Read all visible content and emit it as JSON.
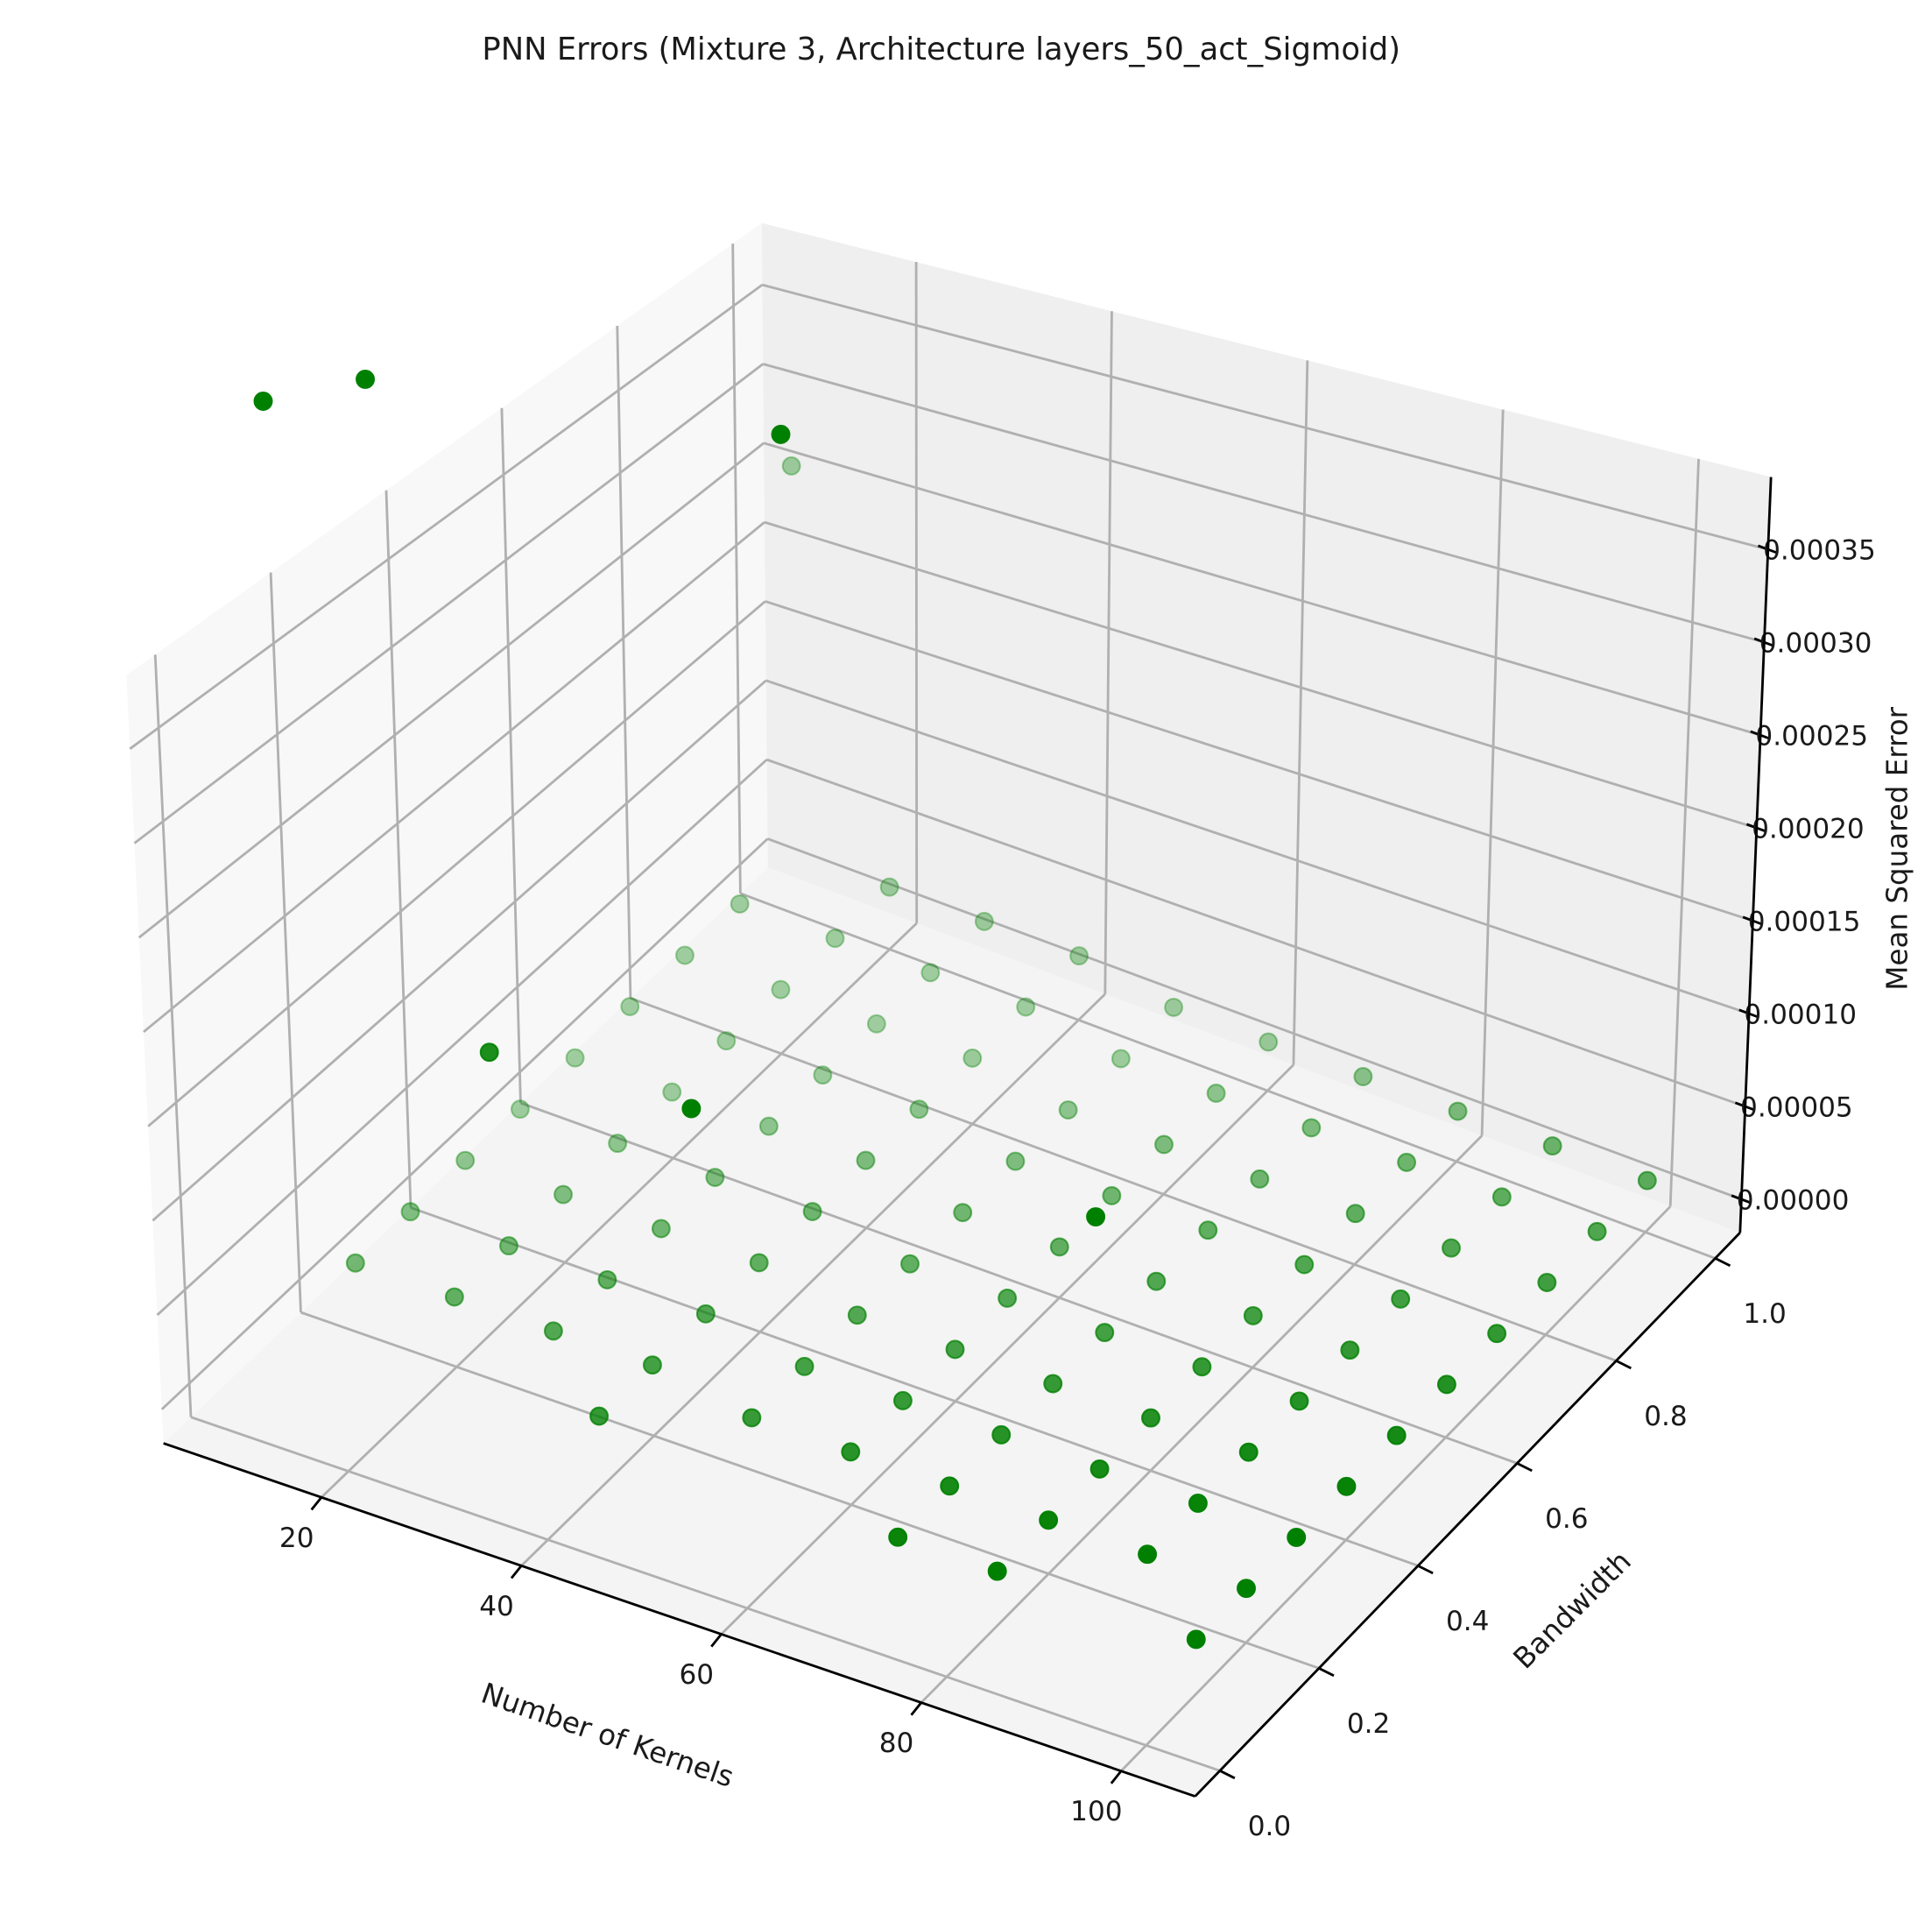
{
  "chart_data": {
    "type": "scatter3d",
    "title": "PNN Errors (Mixture 3, Architecture layers_50_act_Sigmoid)",
    "xlabel": "Number of Kernels",
    "ylabel": "Bandwidth",
    "zlabel": "Mean Squared Error",
    "color": "#008000",
    "x": [
      10,
      10,
      10,
      10,
      10,
      10,
      10,
      10,
      10,
      10,
      20,
      20,
      20,
      20,
      20,
      20,
      20,
      20,
      20,
      20,
      30,
      30,
      30,
      30,
      30,
      30,
      30,
      30,
      30,
      30,
      40,
      40,
      40,
      40,
      40,
      40,
      40,
      40,
      40,
      40,
      50,
      50,
      50,
      50,
      50,
      50,
      50,
      50,
      50,
      50,
      60,
      60,
      60,
      60,
      60,
      60,
      60,
      60,
      60,
      60,
      70,
      70,
      70,
      70,
      70,
      70,
      70,
      70,
      70,
      70,
      80,
      80,
      80,
      80,
      80,
      80,
      80,
      80,
      80,
      80,
      90,
      90,
      90,
      90,
      90,
      90,
      90,
      90,
      90,
      90,
      100,
      100,
      100,
      100,
      100,
      100,
      100,
      100,
      100,
      100
    ],
    "y": [
      0.1,
      0.2,
      0.3,
      0.4,
      0.5,
      0.6,
      0.7,
      0.8,
      0.9,
      1.0,
      0.1,
      0.2,
      0.3,
      0.4,
      0.5,
      0.6,
      0.7,
      0.8,
      0.9,
      1.0,
      0.1,
      0.2,
      0.3,
      0.4,
      0.5,
      0.6,
      0.7,
      0.8,
      0.9,
      1.0,
      0.1,
      0.2,
      0.3,
      0.4,
      0.5,
      0.6,
      0.7,
      0.8,
      0.9,
      1.0,
      0.1,
      0.2,
      0.3,
      0.4,
      0.5,
      0.6,
      0.7,
      0.8,
      0.9,
      1.0,
      0.1,
      0.2,
      0.3,
      0.4,
      0.5,
      0.6,
      0.7,
      0.8,
      0.9,
      1.0,
      0.1,
      0.2,
      0.3,
      0.4,
      0.5,
      0.6,
      0.7,
      0.8,
      0.9,
      1.0,
      0.1,
      0.2,
      0.3,
      0.4,
      0.5,
      0.6,
      0.7,
      0.8,
      0.9,
      1.0,
      0.1,
      0.2,
      0.3,
      0.4,
      0.5,
      0.6,
      0.7,
      0.8,
      0.9,
      1.0,
      0.1,
      0.2,
      0.3,
      0.4,
      0.5,
      0.6,
      0.7,
      0.8,
      0.9,
      1.0
    ],
    "z": [
      0.000513,
      2e-05,
      2e-05,
      2e-05,
      2e-05,
      2e-05,
      2e-05,
      2e-05,
      2e-05,
      0.00026,
      0.00054,
      2e-05,
      2e-05,
      2e-05,
      2e-05,
      2e-05,
      2e-05,
      2e-05,
      2e-05,
      2e-05,
      0.000196,
      2e-05,
      2e-05,
      2e-05,
      2e-05,
      2e-05,
      2e-05,
      2e-05,
      2e-05,
      2e-05,
      2e-05,
      2e-05,
      2e-05,
      2e-05,
      2e-05,
      2e-05,
      2e-05,
      2e-05,
      2e-05,
      2e-05,
      0.0002,
      1e-05,
      1e-05,
      1e-05,
      1e-05,
      1e-05,
      1e-05,
      1e-05,
      1e-05,
      1e-05,
      0.00057,
      1e-05,
      1e-05,
      1e-05,
      1e-05,
      1e-05,
      1e-05,
      1e-05,
      1e-05,
      1e-05,
      1e-05,
      1e-05,
      1e-05,
      1e-05,
      1e-05,
      1e-05,
      1e-05,
      1e-05,
      1e-05,
      1e-05,
      1e-05,
      1e-05,
      1e-05,
      1e-05,
      1e-05,
      1e-05,
      1e-05,
      1e-05,
      1e-05,
      1e-05,
      0.00021,
      1e-05,
      1e-05,
      1e-05,
      1e-05,
      1e-05,
      1e-05,
      1e-05,
      1e-05,
      1e-05,
      1e-05,
      1e-05,
      1e-05,
      1e-05,
      1e-05,
      1e-05,
      1e-05,
      1e-05,
      1e-05,
      1e-05
    ],
    "xlim": [
      4.2,
      107.4
    ],
    "ylim": [
      -0.05,
      1.05
    ],
    "zlim": [
      -1.8e-05,
      0.000389
    ],
    "xticks": [
      20,
      40,
      60,
      80,
      100
    ],
    "yticks": [
      {
        "value": 0,
        "label": "0.0"
      },
      0.2,
      0.4,
      0.6,
      0.8,
      {
        "value": 1,
        "label": "1.0"
      }
    ],
    "zticks": [
      {
        "value": 0,
        "label": "0.00000"
      },
      {
        "value": 5e-05,
        "label": "0.00005"
      },
      {
        "value": 0.0001,
        "label": "0.00010"
      },
      {
        "value": 0.00015,
        "label": "0.00015"
      },
      {
        "value": 0.0002,
        "label": "0.00020"
      },
      {
        "value": 0.00025,
        "label": "0.00025"
      },
      {
        "value": 0.0003,
        "label": "0.00030"
      },
      {
        "value": 0.00035,
        "label": "0.00035"
      }
    ],
    "grid": true
  }
}
